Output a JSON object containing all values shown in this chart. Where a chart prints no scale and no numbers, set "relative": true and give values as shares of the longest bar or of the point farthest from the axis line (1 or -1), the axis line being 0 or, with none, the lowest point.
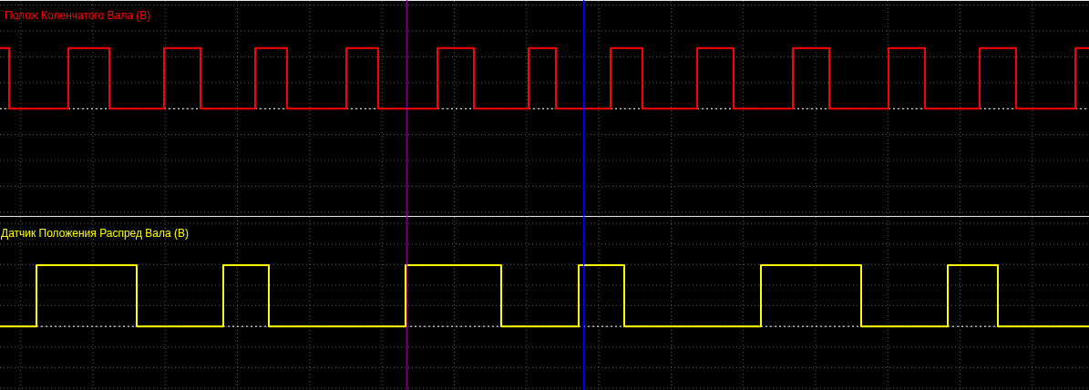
{
  "chart_data": [
    {
      "type": "step",
      "title": "Полож Коленчатого Вала (В)",
      "relative": true,
      "grid": true,
      "tick_labels": false,
      "color": "#ff0000",
      "ref_lines": [
        {
          "axis": "y",
          "value": 0,
          "color": "#ffffff",
          "line_style": "dotted"
        }
      ],
      "categories": [
        null,
        null,
        null,
        null,
        null,
        null,
        null,
        null,
        null,
        null,
        null,
        null,
        null,
        null,
        null,
        null,
        null,
        null,
        null,
        null,
        null,
        null,
        null,
        null,
        null,
        null,
        null,
        null,
        null,
        null,
        null,
        null,
        null,
        null,
        null,
        null,
        null,
        null,
        null,
        null,
        null,
        null,
        null,
        null,
        null,
        null,
        null,
        null,
        null,
        null,
        null,
        null,
        null,
        null,
        null,
        null,
        null,
        null,
        null,
        null,
        null,
        null,
        null,
        null,
        null,
        null,
        null,
        null,
        null,
        null,
        null,
        null,
        null,
        null,
        null,
        null,
        null,
        null,
        null,
        null,
        null,
        null,
        null,
        null,
        null,
        null,
        null,
        null,
        null,
        null,
        null,
        null,
        null,
        null,
        null,
        null,
        null,
        null,
        null,
        null,
        null,
        null,
        null,
        null,
        null,
        null,
        null,
        null,
        null,
        null,
        null,
        null,
        null,
        null,
        null,
        null,
        null,
        null,
        null,
        null,
        null,
        null,
        null,
        null,
        null,
        null,
        null,
        null,
        null,
        null,
        null,
        null,
        null,
        null,
        null,
        null,
        null,
        null,
        null,
        null,
        null,
        null,
        null,
        null,
        null,
        null,
        null,
        null,
        null,
        null,
        null,
        null,
        null,
        null,
        null,
        null,
        null,
        null,
        null,
        null,
        null,
        null,
        null,
        null,
        null,
        null,
        null,
        null,
        null,
        null,
        null,
        null,
        null,
        null,
        null,
        null,
        null,
        null,
        null,
        null,
        null,
        null,
        null,
        null,
        null,
        null,
        null,
        null,
        null,
        null,
        null,
        null,
        null,
        null,
        null,
        null,
        null,
        null,
        null,
        null,
        null,
        null,
        null,
        null,
        null,
        null,
        null,
        null,
        null,
        null,
        null,
        null,
        null,
        null,
        null,
        null,
        null,
        null,
        null,
        null,
        null,
        null,
        null,
        null,
        null,
        null,
        null,
        null,
        null,
        null,
        null,
        null,
        null,
        null,
        null,
        null,
        null,
        null,
        null,
        null
      ],
      "values": [
        1,
        1,
        0,
        0,
        0,
        0,
        0,
        0,
        0,
        0,
        0,
        0,
        0,
        0,
        0,
        1,
        1,
        1,
        1,
        1,
        1,
        1,
        1,
        1,
        0,
        0,
        0,
        0,
        0,
        0,
        0,
        0,
        0,
        0,
        0,
        0,
        1,
        1,
        1,
        1,
        1,
        1,
        1,
        1,
        0,
        0,
        0,
        0,
        0,
        0,
        0,
        0,
        0,
        0,
        0,
        0,
        1,
        1,
        1,
        1,
        1,
        1,
        1,
        0,
        0,
        0,
        0,
        0,
        0,
        0,
        0,
        0,
        0,
        0,
        0,
        0,
        1,
        1,
        1,
        1,
        1,
        1,
        1,
        0,
        0,
        0,
        0,
        0,
        0,
        0,
        0,
        0,
        0,
        0,
        0,
        0,
        1,
        1,
        1,
        1,
        1,
        1,
        1,
        1,
        0,
        0,
        0,
        0,
        0,
        0,
        0,
        0,
        0,
        0,
        0,
        0,
        1,
        1,
        1,
        1,
        1,
        1,
        0,
        0,
        0,
        0,
        0,
        0,
        0,
        0,
        0,
        0,
        0,
        0,
        1,
        1,
        1,
        1,
        1,
        1,
        1,
        0,
        0,
        0,
        0,
        0,
        0,
        0,
        0,
        0,
        0,
        0,
        0,
        1,
        1,
        1,
        1,
        1,
        1,
        1,
        1,
        0,
        0,
        0,
        0,
        0,
        0,
        0,
        0,
        0,
        0,
        0,
        0,
        0,
        1,
        1,
        1,
        1,
        1,
        1,
        1,
        1,
        0,
        0,
        0,
        0,
        0,
        0,
        0,
        0,
        0,
        0,
        0,
        0,
        0,
        1,
        1,
        1,
        1,
        1,
        1,
        1,
        1,
        0,
        0,
        0,
        0,
        0,
        0,
        0,
        0,
        0,
        0,
        0,
        0,
        1,
        1,
        1,
        1,
        1,
        1,
        1,
        1,
        0,
        0,
        0,
        0,
        0,
        0,
        0,
        0,
        0,
        0,
        0,
        0,
        0,
        1,
        1,
        1,
        1
      ]
    },
    {
      "type": "step",
      "title": "Датчик Положения Распред Вала (В)",
      "relative": true,
      "grid": true,
      "tick_labels": false,
      "color": "#ffff00",
      "ref_lines": [
        {
          "axis": "y",
          "value": 0,
          "color": "#ffffff",
          "line_style": "dotted"
        }
      ],
      "categories": [
        null,
        null,
        null,
        null,
        null,
        null,
        null,
        null,
        null,
        null,
        null,
        null,
        null,
        null,
        null,
        null,
        null,
        null,
        null,
        null,
        null,
        null,
        null,
        null,
        null,
        null,
        null,
        null,
        null,
        null,
        null,
        null,
        null,
        null,
        null,
        null,
        null,
        null,
        null,
        null,
        null,
        null,
        null,
        null,
        null,
        null,
        null,
        null,
        null,
        null,
        null,
        null,
        null,
        null,
        null,
        null,
        null,
        null,
        null,
        null,
        null,
        null,
        null,
        null,
        null,
        null,
        null,
        null,
        null,
        null,
        null,
        null,
        null,
        null,
        null,
        null,
        null,
        null,
        null,
        null,
        null,
        null,
        null,
        null,
        null,
        null,
        null,
        null,
        null,
        null,
        null,
        null,
        null,
        null,
        null,
        null,
        null,
        null,
        null,
        null,
        null,
        null,
        null,
        null,
        null,
        null,
        null,
        null,
        null,
        null,
        null,
        null,
        null,
        null,
        null,
        null,
        null,
        null,
        null,
        null,
        null,
        null,
        null,
        null,
        null,
        null,
        null,
        null,
        null,
        null,
        null,
        null,
        null,
        null,
        null,
        null,
        null,
        null,
        null,
        null,
        null,
        null,
        null,
        null,
        null,
        null,
        null,
        null,
        null,
        null,
        null,
        null,
        null,
        null,
        null,
        null,
        null,
        null,
        null,
        null,
        null,
        null,
        null,
        null,
        null,
        null,
        null,
        null,
        null,
        null,
        null,
        null,
        null,
        null,
        null,
        null,
        null,
        null,
        null,
        null,
        null,
        null,
        null,
        null,
        null,
        null,
        null,
        null,
        null,
        null,
        null,
        null,
        null,
        null,
        null,
        null,
        null,
        null,
        null,
        null,
        null,
        null,
        null,
        null,
        null,
        null,
        null,
        null,
        null,
        null,
        null,
        null,
        null,
        null,
        null,
        null,
        null,
        null,
        null,
        null,
        null,
        null,
        null,
        null,
        null,
        null,
        null,
        null,
        null,
        null,
        null,
        null,
        null,
        null,
        null,
        null,
        null,
        null,
        null,
        null
      ],
      "values": [
        0,
        0,
        0,
        0,
        0,
        0,
        0,
        0,
        1,
        1,
        1,
        1,
        1,
        1,
        1,
        1,
        1,
        1,
        1,
        1,
        1,
        1,
        1,
        1,
        1,
        1,
        1,
        1,
        1,
        1,
        0,
        0,
        0,
        0,
        0,
        0,
        0,
        0,
        0,
        0,
        0,
        0,
        0,
        0,
        0,
        0,
        0,
        0,
        0,
        1,
        1,
        1,
        1,
        1,
        1,
        1,
        1,
        1,
        1,
        0,
        0,
        0,
        0,
        0,
        0,
        0,
        0,
        0,
        0,
        0,
        0,
        0,
        0,
        0,
        0,
        0,
        0,
        0,
        0,
        0,
        0,
        0,
        0,
        0,
        0,
        0,
        0,
        0,
        0,
        1,
        1,
        1,
        1,
        1,
        1,
        1,
        1,
        1,
        1,
        1,
        1,
        1,
        1,
        1,
        1,
        1,
        1,
        1,
        1,
        1,
        0,
        0,
        0,
        0,
        0,
        0,
        0,
        0,
        0,
        0,
        0,
        0,
        0,
        0,
        0,
        0,
        0,
        1,
        1,
        1,
        1,
        1,
        1,
        1,
        1,
        1,
        1,
        0,
        0,
        0,
        0,
        0,
        0,
        0,
        0,
        0,
        0,
        0,
        0,
        0,
        0,
        0,
        0,
        0,
        0,
        0,
        0,
        0,
        0,
        0,
        0,
        0,
        0,
        0,
        0,
        0,
        0,
        1,
        1,
        1,
        1,
        1,
        1,
        1,
        1,
        1,
        1,
        1,
        1,
        1,
        1,
        1,
        1,
        1,
        1,
        1,
        1,
        1,
        1,
        0,
        0,
        0,
        0,
        0,
        0,
        0,
        0,
        0,
        0,
        0,
        0,
        0,
        0,
        0,
        0,
        0,
        0,
        0,
        1,
        1,
        1,
        1,
        1,
        1,
        1,
        1,
        1,
        1,
        1,
        0,
        0,
        0,
        0,
        0,
        0,
        0,
        0,
        0,
        0,
        0,
        0,
        0,
        0,
        0,
        0,
        0,
        0,
        0,
        0,
        0
      ]
    }
  ]
}
